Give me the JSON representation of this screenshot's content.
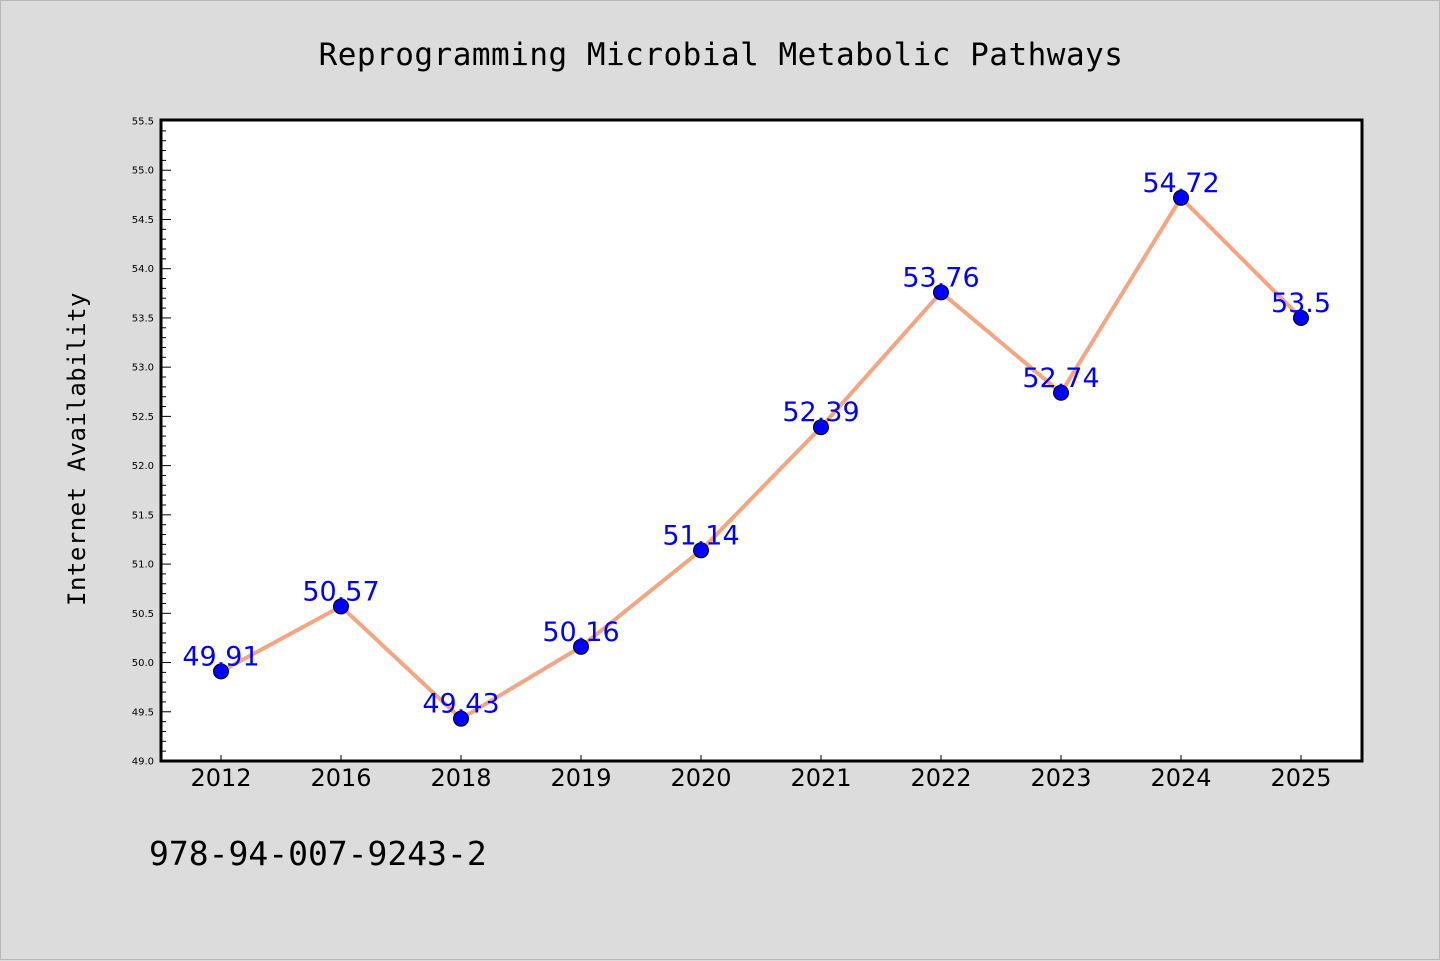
{
  "chart_data": {
    "type": "line",
    "title": "Reprogramming Microbial Metabolic Pathways",
    "xlabel": "",
    "ylabel": "Internet Availability",
    "categories": [
      "2012",
      "2016",
      "2018",
      "2019",
      "2020",
      "2021",
      "2022",
      "2023",
      "2024",
      "2025"
    ],
    "series": [
      {
        "values": [
          49.91,
          50.57,
          49.43,
          50.16,
          51.14,
          52.39,
          53.76,
          52.74,
          54.72,
          53.5
        ],
        "labels": [
          "49.91",
          "50.57",
          "49.43",
          "50.16",
          "51.14",
          "52.39",
          "53.76",
          "52.74",
          "54.72",
          "53.5"
        ],
        "line_color": "#f4a582",
        "marker_color": "#0000ff"
      }
    ],
    "ylim": [
      49.0,
      55.5
    ],
    "y_ticks": [
      "49.0",
      "49.5",
      "50.0",
      "50.5",
      "51.0",
      "51.5",
      "52.0",
      "52.5",
      "53.0",
      "53.5",
      "54.0",
      "54.5",
      "55.0",
      "55.5"
    ],
    "grid": false,
    "legend": "none",
    "annotation": "978-94-007-9243-2",
    "colors": {
      "figure_background": "#dcdcdc",
      "plot_background": "#ffffff",
      "axis": "#000000",
      "data_label": "#0000ff"
    }
  }
}
